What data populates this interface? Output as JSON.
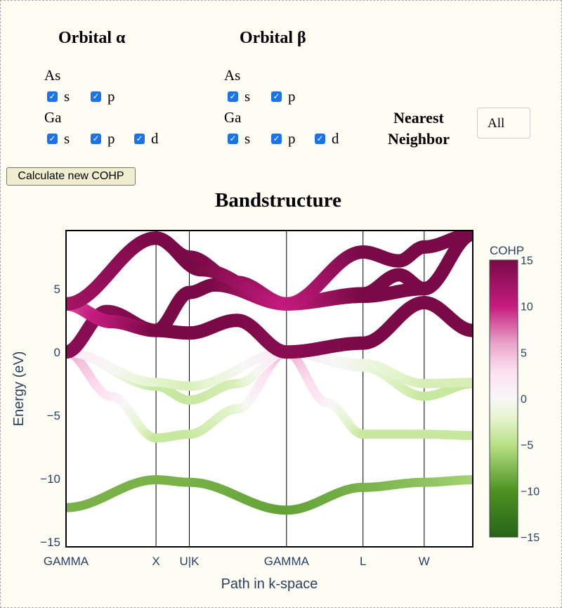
{
  "orbital_alpha": {
    "title": "Orbital α",
    "atoms": [
      {
        "name": "As",
        "orbitals": [
          {
            "label": "s",
            "checked": true
          },
          {
            "label": "p",
            "checked": true
          }
        ]
      },
      {
        "name": "Ga",
        "orbitals": [
          {
            "label": "s",
            "checked": true
          },
          {
            "label": "p",
            "checked": true
          },
          {
            "label": "d",
            "checked": true
          }
        ]
      }
    ]
  },
  "orbital_beta": {
    "title": "Orbital β",
    "atoms": [
      {
        "name": "As",
        "orbitals": [
          {
            "label": "s",
            "checked": true
          },
          {
            "label": "p",
            "checked": true
          }
        ]
      },
      {
        "name": "Ga",
        "orbitals": [
          {
            "label": "s",
            "checked": true
          },
          {
            "label": "p",
            "checked": true
          },
          {
            "label": "d",
            "checked": true
          }
        ]
      }
    ]
  },
  "nearest_neighbor": {
    "label": "Nearest Neighbor",
    "selected": "All"
  },
  "calculate_button": "Calculate new COHP",
  "chart_data": {
    "type": "scatter",
    "title": "Bandstructure",
    "xlabel": "Path in k-space",
    "ylabel": "Energy (eV)",
    "ylim": [
      -15.4,
      9.6
    ],
    "yticks": [
      5,
      0,
      -5,
      -10,
      -15
    ],
    "ytick_labels": [
      "5",
      "0",
      "−5",
      "−10",
      "−15"
    ],
    "kpoints": [
      {
        "label": "GAMMA",
        "k": 0
      },
      {
        "label": "X",
        "k": 1.0
      },
      {
        "label": "U|K",
        "k": 1.37
      },
      {
        "label": "GAMMA",
        "k": 2.45
      },
      {
        "label": "L",
        "k": 3.3
      },
      {
        "label": "W",
        "k": 3.98
      }
    ],
    "xlim": [
      0,
      4.52
    ],
    "colorbar": {
      "title": "COHP",
      "range": [
        -15,
        15
      ],
      "ticks": [
        "15",
        "10",
        "5",
        "0",
        "−5",
        "−10",
        "−15"
      ],
      "colorscale": [
        [
          -15,
          "#276419"
        ],
        [
          -10,
          "#4d9221"
        ],
        [
          -5,
          "#b8e186"
        ],
        [
          -2,
          "#e6f5d0"
        ],
        [
          0,
          "#f7f7f7"
        ],
        [
          3,
          "#fde0ef"
        ],
        [
          6,
          "#e9a3c9"
        ],
        [
          10,
          "#c51b7d"
        ],
        [
          15,
          "#7a0a47"
        ]
      ]
    },
    "bands": [
      {
        "kind": "valence",
        "points": [
          [
            0,
            -12.3,
            -8
          ],
          [
            1.0,
            -10.1,
            -8
          ],
          [
            1.37,
            -10.3,
            -8
          ],
          [
            2.45,
            -12.5,
            -9
          ],
          [
            3.3,
            -10.7,
            -8
          ],
          [
            3.98,
            -10.3,
            -7
          ],
          [
            4.52,
            -10.1,
            -6
          ]
        ]
      },
      {
        "kind": "valence",
        "points": [
          [
            0,
            0,
            6
          ],
          [
            0.5,
            -3.5,
            2
          ],
          [
            1.0,
            -6.8,
            -4
          ],
          [
            1.37,
            -6.5,
            -4
          ],
          [
            1.9,
            -4.5,
            -2
          ],
          [
            2.45,
            0,
            6
          ],
          [
            2.9,
            -4,
            1
          ],
          [
            3.3,
            -6.5,
            -4
          ],
          [
            3.98,
            -6.5,
            -4
          ],
          [
            4.52,
            -6.6,
            -4
          ]
        ]
      },
      {
        "kind": "valence",
        "points": [
          [
            0,
            0,
            3
          ],
          [
            1.0,
            -2.7,
            -4
          ],
          [
            1.37,
            -3.8,
            -4
          ],
          [
            1.9,
            -2.5,
            -3
          ],
          [
            2.45,
            0,
            3
          ],
          [
            3.3,
            -1.2,
            -1
          ],
          [
            3.98,
            -3.5,
            -4
          ],
          [
            4.52,
            -2.5,
            -4
          ]
        ]
      },
      {
        "kind": "valence",
        "points": [
          [
            0,
            0,
            2
          ],
          [
            1.0,
            -2.4,
            -2
          ],
          [
            1.37,
            -2.7,
            -3
          ],
          [
            2.45,
            0,
            2
          ],
          [
            3.3,
            -0.9,
            -1
          ],
          [
            3.98,
            -2.5,
            -3
          ],
          [
            4.52,
            -2.4,
            -3
          ]
        ]
      },
      {
        "kind": "conduction",
        "points": [
          [
            0,
            0,
            14
          ],
          [
            0.45,
            3.2,
            14
          ],
          [
            1.0,
            1.7,
            15
          ],
          [
            1.37,
            1.5,
            15
          ],
          [
            1.9,
            2.5,
            15
          ],
          [
            2.45,
            0,
            14
          ],
          [
            3.3,
            0.7,
            15
          ],
          [
            3.98,
            3.9,
            15
          ],
          [
            4.52,
            1.7,
            15
          ]
        ]
      },
      {
        "kind": "conduction",
        "points": [
          [
            0,
            3.8,
            8
          ],
          [
            0.5,
            2.4,
            11
          ],
          [
            1.0,
            1.7,
            15
          ],
          [
            1.37,
            4.7,
            15
          ],
          [
            1.65,
            5.3,
            15
          ],
          [
            2.45,
            3.8,
            10
          ],
          [
            3.3,
            4.4,
            15
          ],
          [
            3.98,
            5.0,
            15
          ],
          [
            4.52,
            9.3,
            15
          ]
        ]
      },
      {
        "kind": "conduction",
        "points": [
          [
            0,
            3.8,
            10
          ],
          [
            1.0,
            9.0,
            15
          ],
          [
            1.37,
            7.5,
            15
          ],
          [
            1.9,
            5.5,
            14
          ],
          [
            2.45,
            3.8,
            10
          ],
          [
            3.3,
            4.6,
            15
          ],
          [
            3.7,
            6.1,
            15
          ],
          [
            3.98,
            5.0,
            15
          ],
          [
            4.52,
            9.3,
            15
          ]
        ]
      },
      {
        "kind": "conduction",
        "points": [
          [
            0,
            3.8,
            12
          ],
          [
            1.0,
            9.0,
            15
          ],
          [
            1.5,
            6.5,
            15
          ],
          [
            2.45,
            3.8,
            10
          ],
          [
            3.3,
            7.9,
            15
          ],
          [
            3.7,
            7.2,
            15
          ],
          [
            3.98,
            8.3,
            15
          ],
          [
            4.52,
            9.3,
            15
          ]
        ]
      }
    ]
  }
}
